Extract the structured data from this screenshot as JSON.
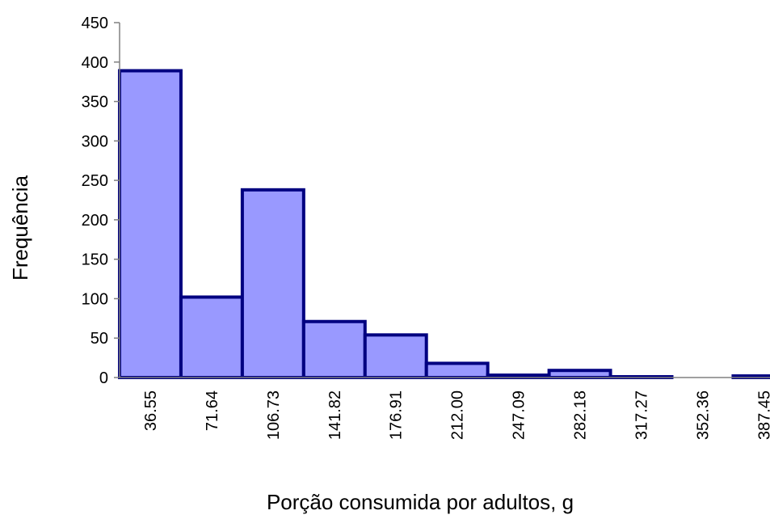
{
  "chart_data": {
    "type": "bar",
    "title": "",
    "xlabel": "Porção consumida por adultos, g",
    "ylabel": "Frequência",
    "categories": [
      "36.55",
      "71.64",
      "106.73",
      "141.82",
      "176.91",
      "212.00",
      "247.09",
      "282.18",
      "317.27",
      "352.36",
      "387.45"
    ],
    "values": [
      389,
      102,
      238,
      71,
      54,
      18,
      3,
      9,
      1,
      0,
      2
    ],
    "ylim": [
      0,
      450
    ],
    "yticks": [
      "0",
      "50",
      "100",
      "150",
      "200",
      "250",
      "300",
      "350",
      "400",
      "450"
    ],
    "grid": false,
    "legend": "none",
    "colors": {
      "bar_fill": "#9999ff",
      "bar_stroke": "#000080",
      "axis": "#808080"
    }
  }
}
